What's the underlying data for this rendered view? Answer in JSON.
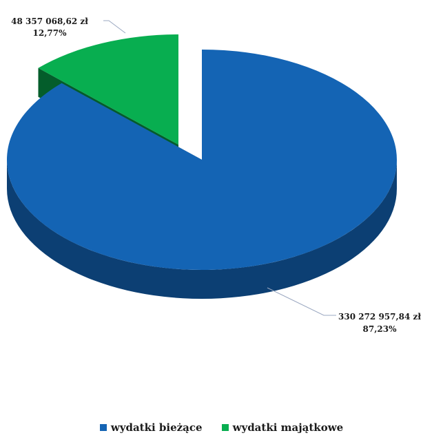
{
  "chart_data": {
    "type": "pie",
    "style": "3d-exploded",
    "title": "",
    "slices": [
      {
        "name": "wydatki bieżące",
        "value": 330272957.84,
        "value_label": "330 272 957,84 zł",
        "percent": 87.23,
        "percent_label": "87,23%",
        "color": "#1464b4",
        "side_color": "#0c3f73"
      },
      {
        "name": "wydatki majątkowe",
        "value": 48357068.62,
        "value_label": "48 357 068,62 zł",
        "percent": 12.77,
        "percent_label": "12,77%",
        "color": "#08ae50",
        "side_color": "#045d2b"
      }
    ],
    "legend_position": "bottom"
  }
}
